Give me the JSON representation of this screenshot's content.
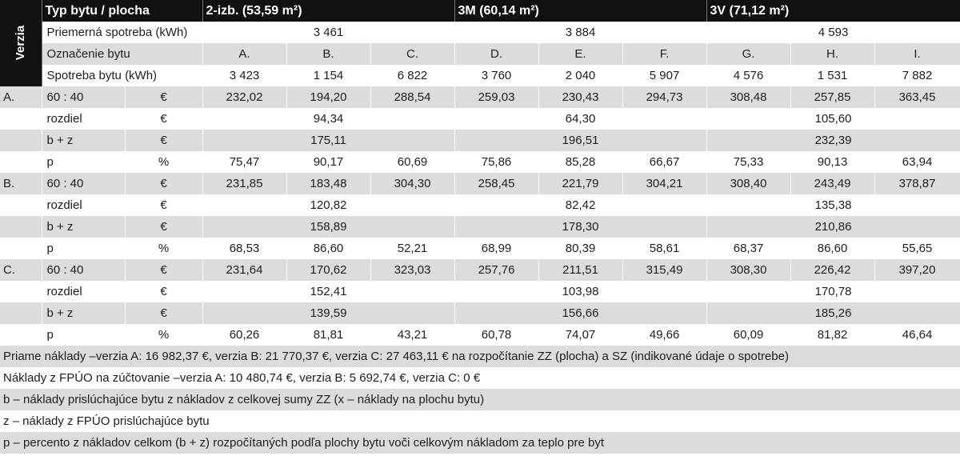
{
  "header": {
    "verzia": "Verzia",
    "type_label": "Typ bytu / plocha",
    "types": [
      "2-izb. (53,59 m²)",
      "3M (60,14 m²)",
      "3V (71,12 m²)"
    ]
  },
  "avg": {
    "label": "Priemerná spotreba (kWh)",
    "values": [
      "3 461",
      "3 884",
      "4 593"
    ]
  },
  "flat_ids": {
    "label": "Označenie bytu",
    "values": [
      "A.",
      "B.",
      "C.",
      "D.",
      "E.",
      "F.",
      "G.",
      "H.",
      "I."
    ]
  },
  "consumption": {
    "label": "Spotreba bytu (kWh)",
    "values": [
      "3 423",
      "1 154",
      "6 822",
      "3 760",
      "2 040",
      "5 907",
      "4 576",
      "1 531",
      "7 882"
    ]
  },
  "versions": [
    {
      "name": "A.",
      "r6040": {
        "label": "60 : 40",
        "unit": "€",
        "values": [
          "232,02",
          "194,20",
          "288,54",
          "259,03",
          "230,43",
          "294,73",
          "308,48",
          "257,85",
          "363,45"
        ]
      },
      "diff": {
        "label": "rozdiel",
        "unit": "€",
        "values": [
          "94,34",
          "64,30",
          "105,60"
        ]
      },
      "bz": {
        "label": "b + z",
        "unit": "€",
        "values": [
          "175,11",
          "196,51",
          "232,39"
        ]
      },
      "p": {
        "label": "p",
        "unit": "%",
        "values": [
          "75,47",
          "90,17",
          "60,69",
          "75,86",
          "85,28",
          "66,67",
          "75,33",
          "90,13",
          "63,94"
        ]
      }
    },
    {
      "name": "B.",
      "r6040": {
        "label": "60 : 40",
        "unit": "€",
        "values": [
          "231,85",
          "183,48",
          "304,30",
          "258,45",
          "221,79",
          "304,21",
          "308,40",
          "243,49",
          "378,87"
        ]
      },
      "diff": {
        "label": "rozdiel",
        "unit": "€",
        "values": [
          "120,82",
          "82,42",
          "135,38"
        ]
      },
      "bz": {
        "label": "b + z",
        "unit": "€",
        "values": [
          "158,89",
          "178,30",
          "210,86"
        ]
      },
      "p": {
        "label": "p",
        "unit": "%",
        "values": [
          "68,53",
          "86,60",
          "52,21",
          "68,99",
          "80,39",
          "58,61",
          "68,37",
          "86,60",
          "55,65"
        ]
      }
    },
    {
      "name": "C.",
      "r6040": {
        "label": "60 : 40",
        "unit": "€",
        "values": [
          "231,64",
          "170,62",
          "323,03",
          "257,76",
          "211,51",
          "315,49",
          "308,30",
          "226,42",
          "397,20"
        ]
      },
      "diff": {
        "label": "rozdiel",
        "unit": "€",
        "values": [
          "152,41",
          "103,98",
          "170,78"
        ]
      },
      "bz": {
        "label": "b + z",
        "unit": "€",
        "values": [
          "139,59",
          "156,66",
          "185,26"
        ]
      },
      "p": {
        "label": "p",
        "unit": "%",
        "values": [
          "60,26",
          "81,81",
          "43,21",
          "60,78",
          "74,07",
          "49,66",
          "60,09",
          "81,82",
          "46,64"
        ]
      }
    }
  ],
  "notes": [
    "Priame náklady –verzia A: 16 982,37 €, verzia B: 21 770,37 €, verzia C: 27 463,11 € na rozpočítanie ZZ (plocha) a SZ (indikované údaje o spotrebe)",
    "Náklady z FPÚO na zúčtovanie –verzia A: 10 480,74 €, verzia B: 5 692,74 €, verzia C: 0 €",
    "b – náklady prislúchajúce bytu z nákladov z celkovej sumy ZZ (x – náklady na plochu bytu)",
    "z – náklady z FPÚO prislúchajúce bytu",
    "p – percento z nákladov celkom (b + z) rozpočítaných podľa plochy bytu voči celkovým nákladom za teplo pre byt"
  ]
}
